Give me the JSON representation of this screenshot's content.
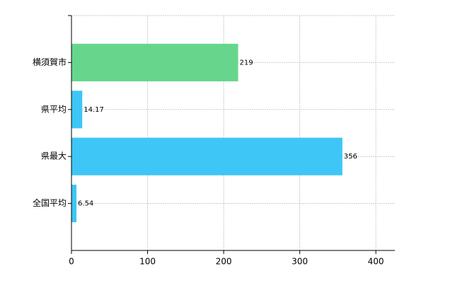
{
  "chart_data": {
    "type": "bar",
    "orientation": "horizontal",
    "categories": [
      "横須賀市",
      "県平均",
      "県最大",
      "全国平均"
    ],
    "values": [
      219,
      14.17,
      356,
      6.54
    ],
    "colors": [
      "#66d68c",
      "#3ec6f7",
      "#3ec6f7",
      "#3ec6f7"
    ],
    "xlim": [
      0,
      425
    ],
    "xticks": [
      0,
      100,
      200,
      300,
      400
    ],
    "grid": true
  }
}
